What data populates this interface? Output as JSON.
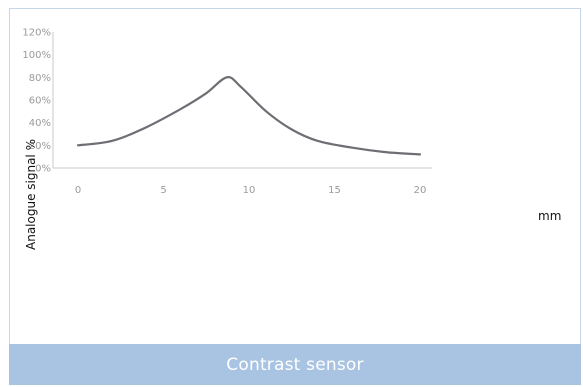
{
  "chart_data": {
    "type": "line",
    "title": "",
    "xlabel": "mm",
    "ylabel": "Analogue signal %",
    "xlim": [
      0,
      20
    ],
    "ylim": [
      0,
      120
    ],
    "x_ticks": [
      "0",
      "5",
      "10",
      "15",
      "20"
    ],
    "y_ticks": [
      "0%",
      "20%",
      "40%",
      "60%",
      "80%",
      "100%",
      "120%"
    ],
    "grid": false,
    "series": [
      {
        "x": [
          0,
          2,
          4,
          6,
          7.5,
          8.7,
          9.5,
          11,
          12.5,
          14,
          16,
          18,
          20
        ],
        "y": [
          20,
          24,
          36,
          52,
          66,
          80,
          72,
          50,
          34,
          24,
          18,
          14,
          12
        ]
      }
    ],
    "colors": {
      "line": "#6e6e74",
      "axis": "#c8c8c8"
    }
  },
  "caption": {
    "text": "Contrast sensor"
  }
}
